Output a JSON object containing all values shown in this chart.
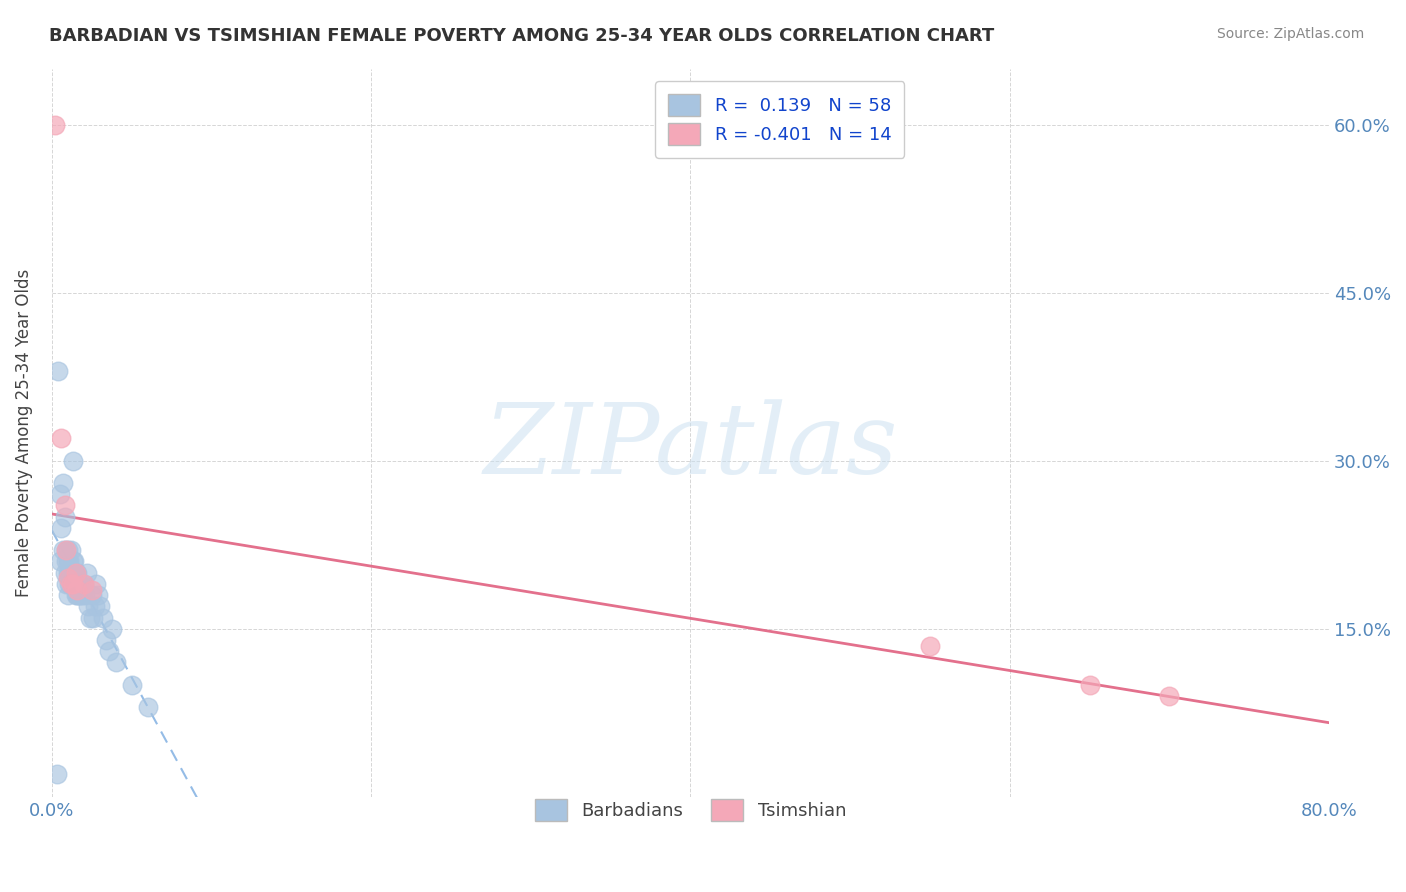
{
  "title": "BARBADIAN VS TSIMSHIAN FEMALE POVERTY AMONG 25-34 YEAR OLDS CORRELATION CHART",
  "source": "Source: ZipAtlas.com",
  "ylabel": "Female Poverty Among 25-34 Year Olds",
  "xlim": [
    0.0,
    0.8
  ],
  "ylim": [
    0.0,
    0.65
  ],
  "x_ticks": [
    0.0,
    0.2,
    0.4,
    0.6,
    0.8
  ],
  "x_tick_labels": [
    "0.0%",
    "",
    "",
    "",
    "80.0%"
  ],
  "y_ticks": [
    0.0,
    0.15,
    0.3,
    0.45,
    0.6
  ],
  "y_tick_labels_right": [
    "",
    "15.0%",
    "30.0%",
    "45.0%",
    "60.0%"
  ],
  "barbadian_color": "#a8c4e0",
  "tsimshian_color": "#f4a8b8",
  "barbadian_R": 0.139,
  "barbadian_N": 58,
  "tsimshian_R": -0.401,
  "tsimshian_N": 14,
  "watermark": "ZIPatlas",
  "background_color": "#ffffff",
  "barbadian_x": [
    0.003,
    0.004,
    0.005,
    0.005,
    0.006,
    0.007,
    0.007,
    0.008,
    0.008,
    0.009,
    0.009,
    0.009,
    0.01,
    0.01,
    0.01,
    0.01,
    0.011,
    0.011,
    0.011,
    0.012,
    0.012,
    0.012,
    0.013,
    0.013,
    0.013,
    0.013,
    0.014,
    0.014,
    0.014,
    0.015,
    0.015,
    0.015,
    0.016,
    0.016,
    0.016,
    0.017,
    0.017,
    0.018,
    0.018,
    0.019,
    0.02,
    0.021,
    0.022,
    0.023,
    0.024,
    0.025,
    0.026,
    0.027,
    0.028,
    0.029,
    0.03,
    0.032,
    0.034,
    0.036,
    0.038,
    0.04,
    0.05,
    0.06
  ],
  "barbadian_y": [
    0.02,
    0.38,
    0.21,
    0.27,
    0.24,
    0.22,
    0.28,
    0.2,
    0.25,
    0.19,
    0.21,
    0.22,
    0.18,
    0.2,
    0.21,
    0.22,
    0.2,
    0.19,
    0.21,
    0.2,
    0.19,
    0.22,
    0.2,
    0.19,
    0.21,
    0.3,
    0.2,
    0.21,
    0.19,
    0.2,
    0.18,
    0.19,
    0.2,
    0.18,
    0.19,
    0.18,
    0.19,
    0.18,
    0.19,
    0.18,
    0.19,
    0.18,
    0.2,
    0.17,
    0.16,
    0.18,
    0.16,
    0.17,
    0.19,
    0.18,
    0.17,
    0.16,
    0.14,
    0.13,
    0.15,
    0.12,
    0.1,
    0.08
  ],
  "tsimshian_x": [
    0.002,
    0.006,
    0.008,
    0.009,
    0.01,
    0.012,
    0.013,
    0.015,
    0.016,
    0.02,
    0.025,
    0.55,
    0.65,
    0.7
  ],
  "tsimshian_y": [
    0.6,
    0.32,
    0.26,
    0.22,
    0.195,
    0.19,
    0.19,
    0.2,
    0.185,
    0.19,
    0.185,
    0.135,
    0.1,
    0.09
  ]
}
